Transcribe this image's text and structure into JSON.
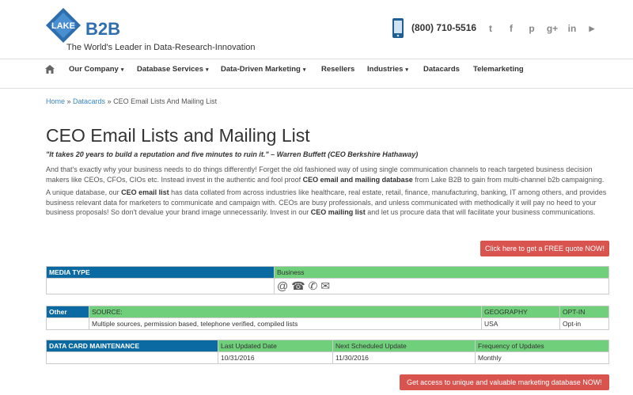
{
  "header": {
    "logo_text": "LAKE",
    "logo_b2b": "B2B",
    "tagline": "The World's Leader in Data-Research-Innovation",
    "phone": "(800) 710-5516",
    "social": [
      {
        "name": "twitter-icon",
        "glyph": "t"
      },
      {
        "name": "facebook-icon",
        "glyph": "f"
      },
      {
        "name": "pinterest-icon",
        "glyph": "p"
      },
      {
        "name": "google-plus-icon",
        "glyph": "g+"
      },
      {
        "name": "linkedin-icon",
        "glyph": "in"
      },
      {
        "name": "youtube-icon",
        "glyph": "▶"
      }
    ],
    "colors": {
      "brand": "#2f6fb0"
    }
  },
  "nav": {
    "items": [
      {
        "label": "Our Company",
        "caret": "▾"
      },
      {
        "label": "Database Services",
        "caret": "▾"
      },
      {
        "label": "Data-Driven Marketing",
        "caret": "▾"
      },
      {
        "label": "Resellers",
        "caret": ""
      },
      {
        "label": "Industries",
        "caret": "▾"
      },
      {
        "label": "Datacards",
        "caret": ""
      },
      {
        "label": "Telemarketing",
        "caret": ""
      }
    ]
  },
  "breadcrumb": {
    "home": "Home",
    "sep1": " » ",
    "datacards": "Datacards",
    "sep2": " » ",
    "current": "CEO Email Lists And Mailing List"
  },
  "page": {
    "title": "CEO Email Lists and Mailing List",
    "quote": "\"It takes 20 years to build a reputation and five minutes to ruin it.\" – Warren Buffett (CEO Berkshire Hathaway)",
    "para1": {
      "a": "And that's exactly why your business needs to do things differently! Forget the old fashioned way of using single communication channels to reach targeted business decision makers like CEOs, CFOs, CIOs etc. Instead invest in the authentic and fool proof ",
      "b": "CEO email and mailing database",
      "c": " from Lake B2B to gain from multi-channel b2b campaigning."
    },
    "para2": {
      "a": "A unique database, our ",
      "b": "CEO email list",
      "c": " has data collated from across industries like healthcare, real estate, retail, finance, manufacturing, banking, IT among others, and provides business relevant data for marketers to communicate and campaign with. CEOs are busy professionals, and unless communicated with methodically it will pay no heed to your business proposals! So don't devalue your brand image unnecessarily. Invest in our ",
      "d": "CEO mailing list",
      "e": " and let us procure data that will facilitate your business communications."
    },
    "quote_button": "Click here to get a FREE quote NOW!",
    "access_button": "Get access to unique and valuable marketing database NOW!",
    "colors": {
      "button": "#d9534f",
      "header_blue": "#0a6aa1",
      "header_green": "#6fcf7a"
    }
  },
  "media_table": {
    "label": "MEDIA TYPE",
    "value": "Business",
    "icons": [
      {
        "name": "email-at-icon",
        "glyph": "@"
      },
      {
        "name": "fax-icon",
        "glyph": "☎"
      },
      {
        "name": "telephone-icon",
        "glyph": "✆"
      },
      {
        "name": "mail-envelope-icon",
        "glyph": "✉"
      }
    ]
  },
  "other_table": {
    "label": "Other",
    "headers": [
      "SOURCE:",
      "GEOGRAPHY",
      "OPT-IN"
    ],
    "row": [
      "Multiple sources, permission based, telephone verified, compiled lists",
      "USA",
      "Opt-in"
    ]
  },
  "maintenance_table": {
    "label": "DATA CARD MAINTENANCE",
    "headers": [
      "Last Updated Date",
      "Next Scheduled Update",
      "Frequency of Updates"
    ],
    "row": [
      "10/31/2016",
      "11/30/2016",
      "Monthly"
    ]
  }
}
